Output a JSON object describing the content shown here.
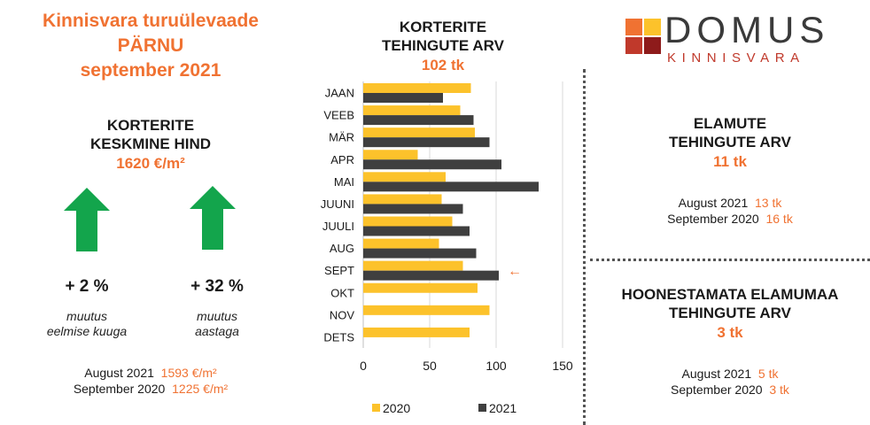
{
  "title": {
    "line1": "Kinnisvara turuülevaade",
    "line2": "PÄRNU",
    "line3": "september 2021"
  },
  "avg_price": {
    "title_line1": "KORTERITE",
    "title_line2": "KESKMINE HIND",
    "value": "1620 €/m²",
    "monthly": {
      "change": "+ 2 %",
      "label_line1": "muutus",
      "label_line2": "eelmise kuuga",
      "arrow_icon": "arrow-up-icon"
    },
    "yearly": {
      "change": "+ 32 %",
      "label_line1": "muutus",
      "label_line2": "aastaga",
      "arrow_icon": "arrow-up-icon"
    },
    "comparisons": [
      {
        "label": "August 2021",
        "value": "1593 €/m²"
      },
      {
        "label": "September 2020",
        "value": "1225 €/m²"
      }
    ]
  },
  "apartments_chart": {
    "title_line1": "KORTERITE",
    "title_line2": "TEHINGUTE ARV",
    "value": "102 tk"
  },
  "houses": {
    "title_line1": "ELAMUTE",
    "title_line2": "TEHINGUTE ARV",
    "value": "11 tk",
    "comparisons": [
      {
        "label": "August 2021",
        "value": "13 tk"
      },
      {
        "label": "September 2020",
        "value": "16 tk"
      }
    ]
  },
  "land": {
    "title_line1": "HOONESTAMATA ELAMUMAA",
    "title_line2": "TEHINGUTE ARV",
    "value": "3 tk",
    "comparisons": [
      {
        "label": "August 2021",
        "value": "5 tk"
      },
      {
        "label": "September 2020",
        "value": "3 tk"
      }
    ]
  },
  "logo": {
    "word": "DOMUS",
    "sub": "KINNISVARA"
  },
  "colors": {
    "accent": "#f07232",
    "series_2020": "#fcc22b",
    "series_2021": "#3f3f3f",
    "arrow": "#13a54c"
  },
  "chart_data": {
    "type": "bar",
    "orientation": "horizontal",
    "categories": [
      "JAAN",
      "VEEB",
      "MÄR",
      "APR",
      "MAI",
      "JUUNI",
      "JUULI",
      "AUG",
      "SEPT",
      "OKT",
      "NOV",
      "DETS"
    ],
    "series": [
      {
        "name": "2020",
        "values": [
          81,
          73,
          84,
          41,
          62,
          59,
          67,
          57,
          75,
          86,
          95,
          80
        ]
      },
      {
        "name": "2021",
        "values": [
          60,
          83,
          95,
          104,
          132,
          75,
          80,
          85,
          102,
          null,
          null,
          null
        ]
      }
    ],
    "xlim": [
      0,
      150
    ],
    "xticks": [
      0,
      50,
      100,
      150
    ],
    "grid": true,
    "legend": "bottom",
    "highlight": {
      "category": "SEPT",
      "marker": "←"
    }
  }
}
